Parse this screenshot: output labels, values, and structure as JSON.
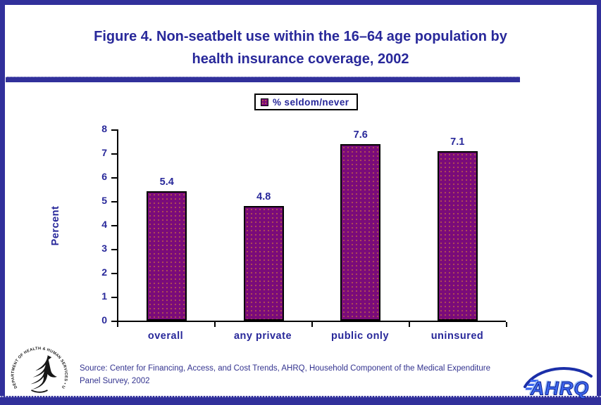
{
  "theme": {
    "frame_blue": "#31309B",
    "text_blue": "#28289A",
    "bar_purple": "#7A0B7A",
    "axis_black": "#000000",
    "source_blue": "#33338F",
    "ahrq_blue": "#2E55E0"
  },
  "title": {
    "line1": "Figure 4. Non-seatbelt use within the 16–64 age population by",
    "line2": "health insurance coverage, 2002"
  },
  "legend": {
    "label": "% seldom/never"
  },
  "chart_data": {
    "type": "bar",
    "title": "Figure 4. Non-seatbelt use within the 16–64 age population by health insurance coverage, 2002",
    "categories": [
      "overall",
      "any private",
      "public only",
      "uninsured"
    ],
    "values": [
      5.4,
      4.8,
      7.6,
      7.1
    ],
    "value_labels": [
      "5.4",
      "4.8",
      "7.6",
      "7.1"
    ],
    "series_label": "% seldom/never",
    "xlabel": "",
    "ylabel": "Percent",
    "ylim": [
      0,
      8
    ],
    "yticks": [
      0,
      1,
      2,
      3,
      4,
      5,
      6,
      7,
      8
    ],
    "grid": false,
    "legend_position": "top-center",
    "bar_color": "#7A0B7A"
  },
  "source": {
    "text": "Source: Center for Financing, Access, and Cost Trends, AHRQ, Household Component of the Medical Expenditure Panel Survey, 2002"
  },
  "logos": {
    "hhs_ring_text": "DEPARTMENT OF HEALTH & HUMAN SERVICES • USA",
    "ahrq_text": "AHRQ"
  }
}
